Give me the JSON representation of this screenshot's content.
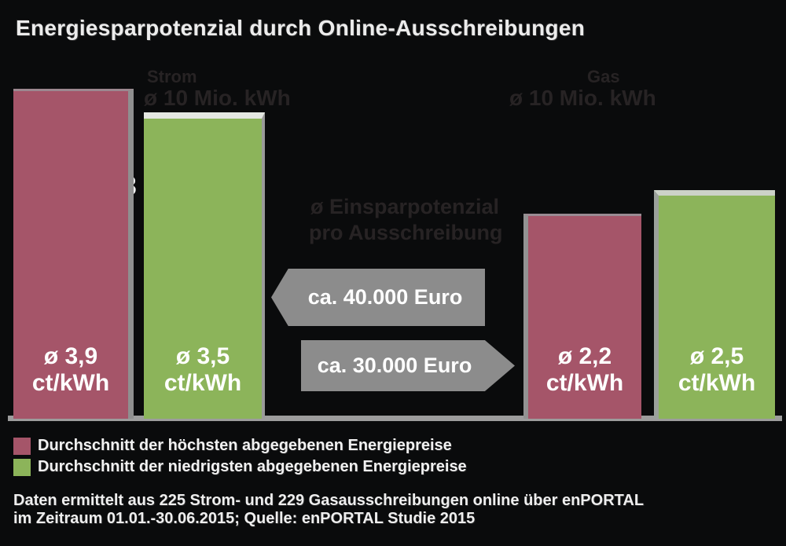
{
  "title": "Energiesparpotenzial durch Online-Ausschreibungen",
  "colors": {
    "background": "#0a0b0c",
    "high_price_bar": "#a55569",
    "low_price_bar": "#8cb45a",
    "arrow": "#8c8c8c",
    "baseline": "#9d9d9d",
    "text": "#f1f1f1",
    "faded_text": "#272324"
  },
  "chart_data": {
    "type": "bar",
    "title": "Energiesparpotenzial durch Online-Ausschreibungen",
    "unit": "ct/kWh",
    "categories": [
      "Strom",
      "Gas"
    ],
    "series": [
      {
        "name": "Durchschnitt der höchsten abgegebenen Energiepreise",
        "color": "#a55569",
        "values": [
          3.9,
          2.2
        ]
      },
      {
        "name": "Durchschnitt der niedrigsten abgegebenen Energiepreise",
        "color": "#8cb45a",
        "values": [
          3.5,
          2.5
        ]
      }
    ],
    "annotations": [
      {
        "text": "ca. 40.000 Euro",
        "arrow_direction": "left",
        "refers_to": "Strom"
      },
      {
        "text": "ca. 30.000 Euro",
        "arrow_direction": "right",
        "refers_to": "Gas"
      }
    ],
    "legend_position": "bottom-left",
    "grid": false,
    "axes_hidden": true
  },
  "bars": [
    {
      "line1": "ø 3,9",
      "line2": "ct/kWh"
    },
    {
      "line1": "ø 3,5",
      "line2": "ct/kWh"
    },
    {
      "line1": "ø 2,2",
      "line2": "ct/kWh"
    },
    {
      "line1": "ø 2,5",
      "line2": "ct/kWh"
    }
  ],
  "arrows": [
    {
      "label": "ca. 40.000 Euro"
    },
    {
      "label": "ca. 30.000 Euro"
    }
  ],
  "faded_text": {
    "strom_title": "Strom",
    "strom_subtitle": "ø 10 Mio. kWh",
    "gas_title": "Gas",
    "gas_subtitle": "ø 10 Mio. kWh",
    "mid_line1": "ø Einsparpotenzial",
    "mid_line2": "pro Ausschreibung",
    "white_fragment": "3"
  },
  "legend": [
    {
      "label": "Durchschnitt der höchsten abgegebenen Energiepreise",
      "color": "#a55569"
    },
    {
      "label": "Durchschnitt der niedrigsten abgegebenen Energiepreise",
      "color": "#8cb45a"
    }
  ],
  "footer": {
    "line1": "Daten ermittelt aus 225 Strom- und 229 Gasausschreibungen online über enPORTAL",
    "line2": "im Zeitraum 01.01.-30.06.2015; Quelle: enPORTAL Studie 2015"
  }
}
